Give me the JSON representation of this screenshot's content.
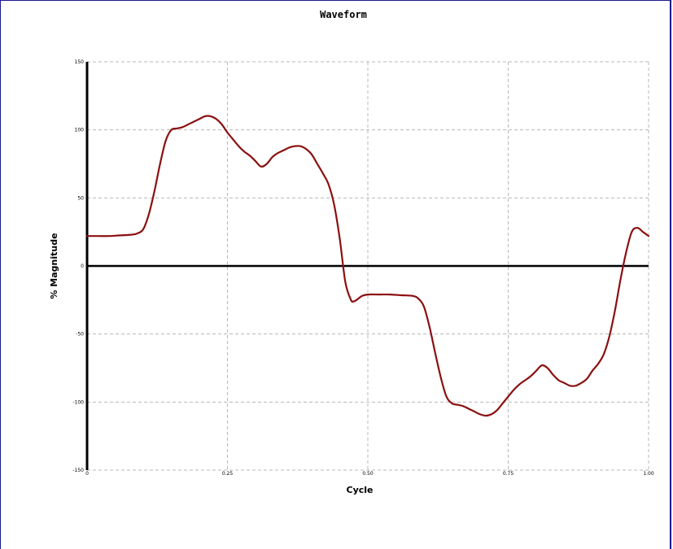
{
  "colors": {
    "frame": "#1a1a8c",
    "series": "#8b1010",
    "grid": "#b8b8b8",
    "axis": "#000000"
  },
  "chart_data": {
    "type": "line",
    "title": "Waveform",
    "xlabel": "Cycle",
    "ylabel": "% Magnitude",
    "xlim": [
      0,
      1
    ],
    "ylim": [
      -150,
      150
    ],
    "grid": true,
    "xticks": [
      0,
      0.25,
      0.5,
      0.75,
      1.0
    ],
    "xtick_labels": [
      "0",
      "0.25",
      "0.50",
      "0.75",
      "1.00"
    ],
    "yticks": [
      150,
      100,
      50,
      0,
      -50,
      -100,
      -150
    ],
    "ytick_labels": [
      "150",
      "100",
      "50",
      "0",
      "-50",
      "-100",
      "-150"
    ],
    "series": [
      {
        "x": [
          0,
          0.02,
          0.04,
          0.06,
          0.08,
          0.09,
          0.1,
          0.11,
          0.12,
          0.13,
          0.14,
          0.15,
          0.16,
          0.17,
          0.18,
          0.19,
          0.2,
          0.21,
          0.22,
          0.23,
          0.24,
          0.25,
          0.26,
          0.27,
          0.28,
          0.29,
          0.3,
          0.31,
          0.32,
          0.33,
          0.34,
          0.35,
          0.36,
          0.37,
          0.38,
          0.39,
          0.4,
          0.41,
          0.42,
          0.43,
          0.44,
          0.45,
          0.46,
          0.47,
          0.475,
          0.48,
          0.49,
          0.5,
          0.52,
          0.54,
          0.56,
          0.58,
          0.59,
          0.6,
          0.61,
          0.62,
          0.63,
          0.64,
          0.65,
          0.66,
          0.67,
          0.68,
          0.69,
          0.7,
          0.71,
          0.72,
          0.73,
          0.74,
          0.75,
          0.76,
          0.77,
          0.78,
          0.79,
          0.8,
          0.81,
          0.82,
          0.83,
          0.84,
          0.85,
          0.86,
          0.87,
          0.88,
          0.89,
          0.9,
          0.91,
          0.92,
          0.93,
          0.94,
          0.95,
          0.96,
          0.97,
          0.98,
          0.99,
          1.0
        ],
        "y": [
          22,
          22,
          22,
          22.5,
          23,
          24,
          27,
          38,
          55,
          75,
          92,
          100,
          101,
          102,
          104,
          106,
          108,
          110,
          110,
          108,
          104,
          98,
          93,
          88,
          84,
          81,
          77,
          73,
          75,
          80,
          83,
          85,
          87,
          88,
          88,
          86,
          82,
          75,
          68,
          60,
          45,
          20,
          -12,
          -25,
          -26,
          -25,
          -22,
          -21,
          -21,
          -21,
          -21.5,
          -22,
          -24,
          -30,
          -45,
          -64,
          -82,
          -96,
          -101,
          -102,
          -103,
          -105,
          -107,
          -109,
          -110,
          -109,
          -106,
          -101,
          -96,
          -91,
          -87,
          -84,
          -81,
          -77,
          -73,
          -75,
          -80,
          -84,
          -86,
          -88,
          -88,
          -86,
          -83,
          -77,
          -72,
          -65,
          -52,
          -33,
          -10,
          10,
          25,
          28,
          25,
          22
        ]
      }
    ]
  }
}
